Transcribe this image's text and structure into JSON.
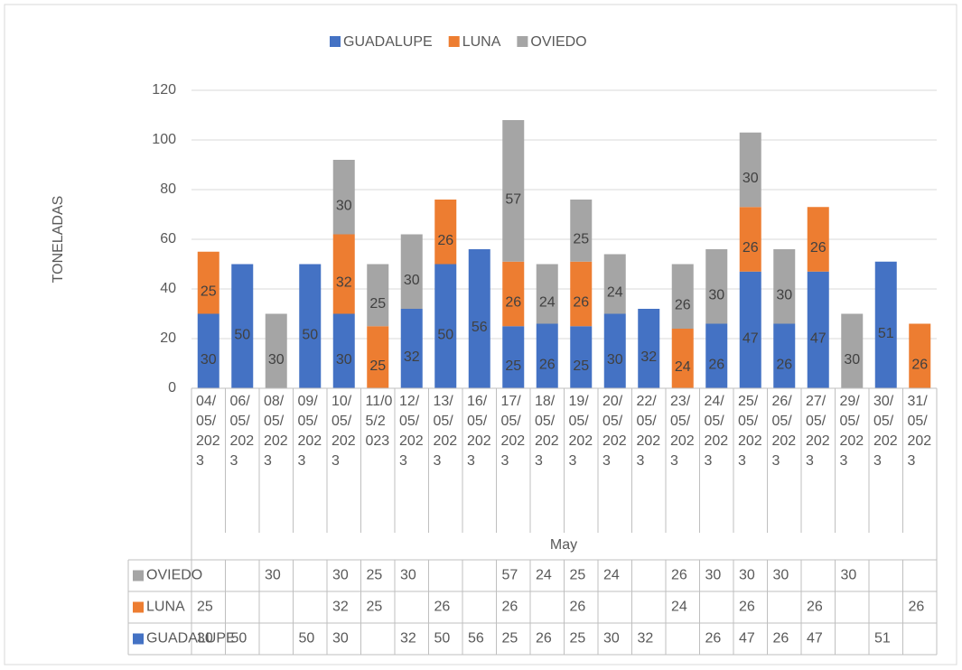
{
  "chart_data": {
    "type": "bar",
    "stacked": true,
    "categories": [
      "04/05/2023",
      "06/05/2023",
      "08/05/2023",
      "09/05/2023",
      "10/05/2023",
      "11/05/2023",
      "12/05/2023",
      "13/05/2023",
      "16/05/2023",
      "17/05/2023",
      "18/05/2023",
      "19/05/2023",
      "20/05/2023",
      "22/05/2023",
      "23/05/2023",
      "24/05/2023",
      "25/05/2023",
      "26/05/2023",
      "27/05/2023",
      "29/05/2023",
      "30/05/2023",
      "31/05/2023"
    ],
    "category_group": "May",
    "y_label": "TONELADAS",
    "series": [
      {
        "name": "GUADALUPE",
        "color": "#4472c4",
        "values": [
          30,
          50,
          null,
          50,
          30,
          null,
          32,
          50,
          56,
          25,
          26,
          25,
          30,
          32,
          null,
          26,
          47,
          26,
          47,
          null,
          51,
          null
        ]
      },
      {
        "name": "LUNA",
        "color": "#ed7d31",
        "values": [
          25,
          null,
          null,
          null,
          32,
          25,
          null,
          26,
          null,
          26,
          null,
          26,
          null,
          null,
          24,
          null,
          26,
          null,
          26,
          null,
          null,
          26
        ]
      },
      {
        "name": "OVIEDO",
        "color": "#a5a5a5",
        "values": [
          null,
          null,
          30,
          null,
          30,
          25,
          30,
          null,
          null,
          57,
          24,
          25,
          24,
          null,
          26,
          30,
          30,
          30,
          null,
          30,
          null,
          null
        ]
      }
    ],
    "ylim": [
      0,
      120
    ],
    "yticks": [
      0,
      20,
      40,
      60,
      80,
      100,
      120
    ],
    "grid": true,
    "legend": "top",
    "data_table": true
  }
}
